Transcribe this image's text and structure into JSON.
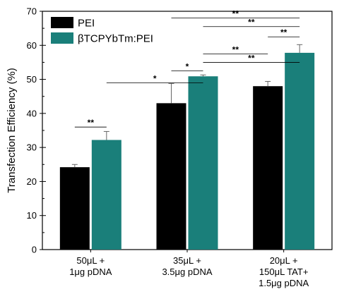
{
  "chart_data": {
    "type": "bar",
    "title": "",
    "xlabel": "",
    "ylabel": "Transfection Efficiency (%)",
    "ylim": [
      0,
      70
    ],
    "yticks": [
      0,
      10,
      20,
      30,
      40,
      50,
      60,
      70
    ],
    "grid": false,
    "legend_position": "top-left",
    "categories": [
      [
        "50μL +",
        "1μg pDNA"
      ],
      [
        "35μL +",
        "3.5μg pDNA"
      ],
      [
        "20μL +",
        "150μL TAT+",
        "1.5μg pDNA"
      ]
    ],
    "series": [
      {
        "name": "PEI",
        "color": "#000000",
        "values": [
          24.2,
          43.0,
          48.0
        ],
        "errors": [
          0.8,
          5.8,
          1.4
        ]
      },
      {
        "name": "βTCPYbTm:PEI",
        "color": "#1a7f7a",
        "values": [
          32.2,
          50.9,
          57.8
        ],
        "errors": [
          2.5,
          0.4,
          2.4
        ]
      }
    ],
    "significance": [
      {
        "from": [
          0,
          0
        ],
        "to": [
          0,
          1
        ],
        "y": 36.0,
        "label": "**"
      },
      {
        "from": [
          0,
          1
        ],
        "to": [
          1,
          1
        ],
        "y": 49.0,
        "label": "*"
      },
      {
        "from": [
          1,
          0
        ],
        "to": [
          1,
          1
        ],
        "y": 52.5,
        "label": "*"
      },
      {
        "from": [
          1,
          1
        ],
        "to": [
          2,
          0
        ],
        "y": 57.5,
        "label": "**"
      },
      {
        "from": [
          1,
          1
        ],
        "to": [
          2,
          1
        ],
        "y": 55.0,
        "label": "**"
      },
      {
        "from": [
          2,
          0
        ],
        "to": [
          2,
          1
        ],
        "y": 62.5,
        "label": "**"
      },
      {
        "from": [
          1,
          1
        ],
        "to": [
          2,
          1
        ],
        "y": 65.5,
        "label": "**"
      },
      {
        "from": [
          1,
          0
        ],
        "to": [
          2,
          1
        ],
        "y": 68.0,
        "label": "**"
      }
    ]
  }
}
